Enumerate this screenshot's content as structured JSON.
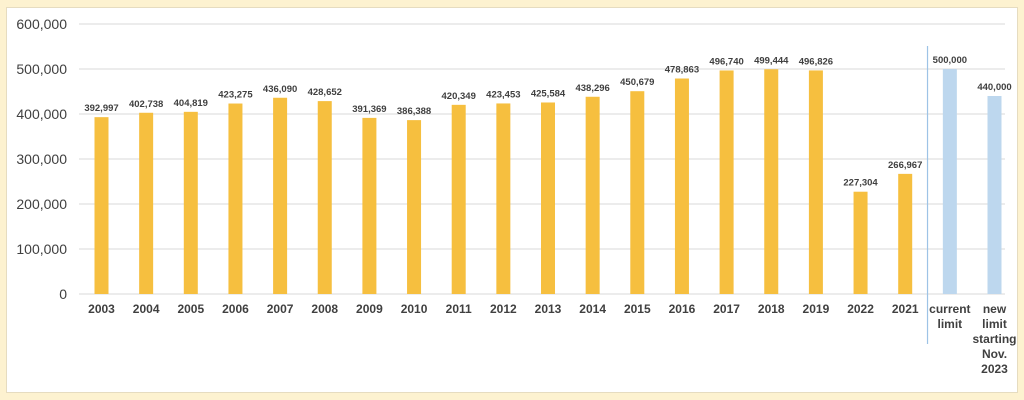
{
  "chart_data": {
    "type": "bar",
    "title": "",
    "xlabel": "",
    "ylabel": "",
    "ylim": [
      0,
      600000
    ],
    "yticks": [
      0,
      100000,
      200000,
      300000,
      400000,
      500000,
      600000
    ],
    "ytick_labels": [
      "0",
      "100,000",
      "200,000",
      "300,000",
      "400,000",
      "500,000",
      "600,000"
    ],
    "grid": true,
    "legend": "none",
    "colors": {
      "actual": "#f6bf3f",
      "limit": "#bdd7ee",
      "divider": "#9dc3e6",
      "grid": "#d9d9d9"
    },
    "categories": [
      [
        "2003"
      ],
      [
        "2004"
      ],
      [
        "2005"
      ],
      [
        "2006"
      ],
      [
        "2007"
      ],
      [
        "2008"
      ],
      [
        "2009"
      ],
      [
        "2010"
      ],
      [
        "2011"
      ],
      [
        "2012"
      ],
      [
        "2013"
      ],
      [
        "2014"
      ],
      [
        "2015"
      ],
      [
        "2016"
      ],
      [
        "2017"
      ],
      [
        "2018"
      ],
      [
        "2019"
      ],
      [
        "2022"
      ],
      [
        "2021"
      ],
      [
        "current",
        "limit"
      ],
      [
        "new",
        "limit",
        "starting",
        "Nov.",
        "2023"
      ]
    ],
    "values": [
      392997,
      402738,
      404819,
      423275,
      436090,
      428652,
      391369,
      386388,
      420349,
      423453,
      425584,
      438296,
      450679,
      478863,
      496740,
      499444,
      496826,
      227304,
      266967,
      500000,
      440000
    ],
    "data_labels": [
      "392,997",
      "402,738",
      "404,819",
      "423,275",
      "436,090",
      "428,652",
      "391,369",
      "386,388",
      "420,349",
      "423,453",
      "425,584",
      "438,296",
      "450,679",
      "478,863",
      "496,740",
      "499,444",
      "496,826",
      "227,304",
      "266,967",
      "500,000",
      "440,000"
    ],
    "bar_kinds": [
      "actual",
      "actual",
      "actual",
      "actual",
      "actual",
      "actual",
      "actual",
      "actual",
      "actual",
      "actual",
      "actual",
      "actual",
      "actual",
      "actual",
      "actual",
      "actual",
      "actual",
      "actual",
      "actual",
      "limit",
      "limit"
    ],
    "divider_after_category": "2021"
  }
}
